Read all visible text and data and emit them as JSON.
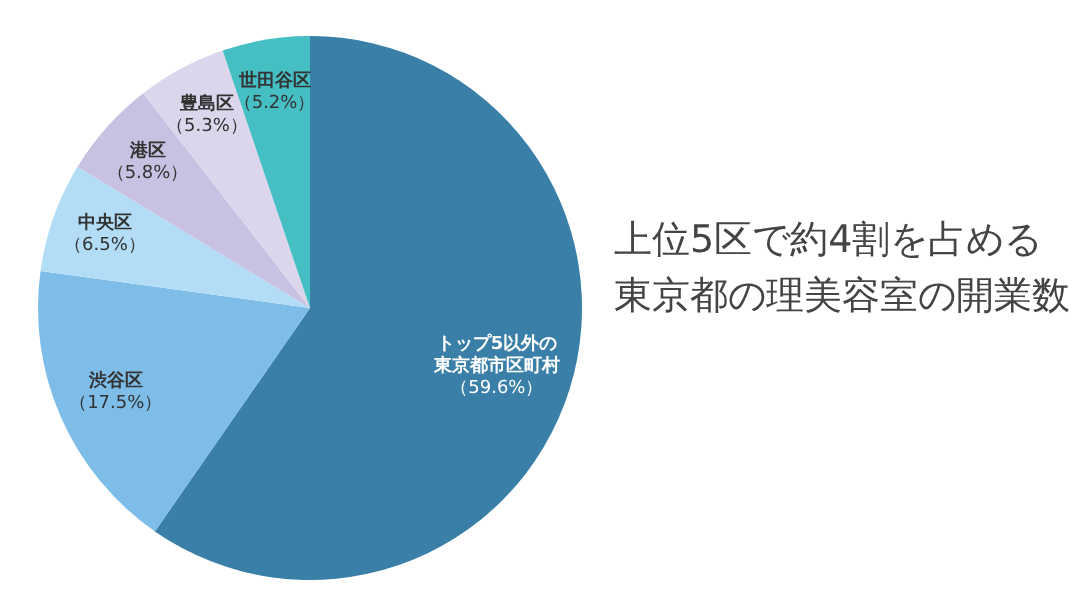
{
  "chart_data": {
    "type": "pie",
    "title": "上位5区で約4割を占める東京都の理美容室の開業数",
    "categories": [
      "トップ5以外の東京都市区町村",
      "渋谷区",
      "中央区",
      "港区",
      "豊島区",
      "世田谷区"
    ],
    "values": [
      59.6,
      17.5,
      6.5,
      5.8,
      5.3,
      5.2
    ],
    "value_labels": [
      "（59.6%）",
      "（17.5%）",
      "（6.5%）",
      "（5.8%）",
      "（5.3%）",
      "（5.2%）"
    ],
    "colors": [
      "#3a7fa8",
      "#7dbde8",
      "#b3ddf6",
      "#c9c1e1",
      "#dcd6ec",
      "#45bfc4"
    ]
  }
}
